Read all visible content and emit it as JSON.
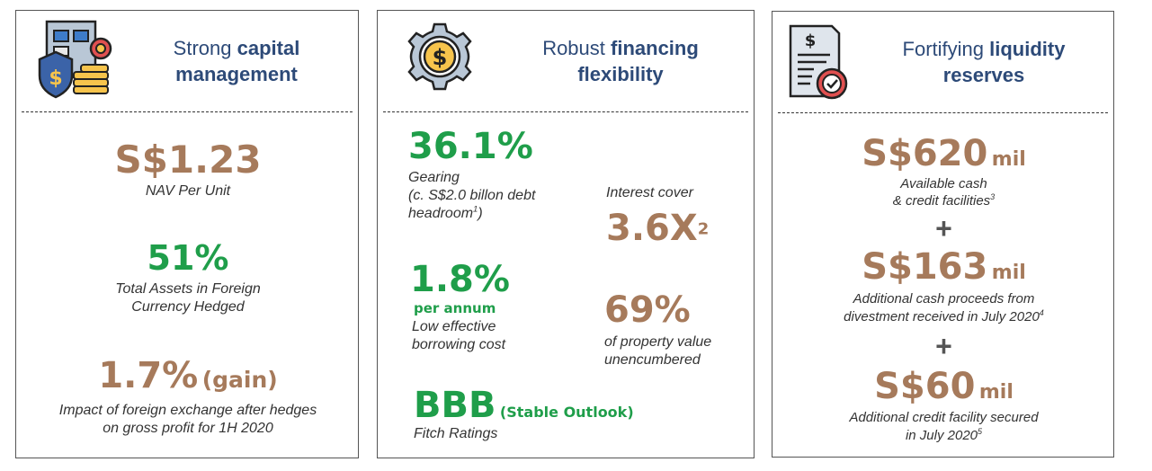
{
  "cards": {
    "capital": {
      "title_prefix": "Strong ",
      "title_bold_1": "capital",
      "title_bold_2": "management",
      "icon": "shield-coins-icon",
      "nav_value": "S$1.23",
      "nav_caption": "NAV Per Unit",
      "hedged_value": "51%",
      "hedged_caption_1": "Total Assets in Foreign",
      "hedged_caption_2": "Currency Hedged",
      "fx_value": "1.7%",
      "fx_suffix": "(gain)",
      "fx_caption_1": "Impact of foreign exchange after hedges",
      "fx_caption_2": "on gross profit for 1H 2020"
    },
    "financing": {
      "title_prefix": "Robust ",
      "title_bold_1": "financing",
      "title_bold_2": "flexibility",
      "icon": "gear-dollar-icon",
      "gearing_value": "36.1%",
      "gearing_caption_1": "Gearing",
      "gearing_caption_2": "(c. S$2.0 billon debt",
      "gearing_caption_3": "headroom",
      "gearing_caption_3_sup": "1",
      "gearing_caption_3_end": ")",
      "cover_caption": "Interest cover",
      "cover_value": "3.6X",
      "cover_sup": "2",
      "cost_value": "1.8%",
      "cost_unit": "per annum",
      "cost_caption_1": "Low effective",
      "cost_caption_2": "borrowing cost",
      "unenc_value": "69%",
      "unenc_caption_1": "of property value",
      "unenc_caption_2": "unencumbered",
      "rating_value": "BBB",
      "rating_outlook": "(Stable Outlook)",
      "rating_caption": "Fitch Ratings"
    },
    "liquidity": {
      "title_prefix": "Fortifying ",
      "title_bold_1": "liquidity",
      "title_bold_2": "reserves",
      "icon": "document-check-icon",
      "cash_value": "S$620",
      "cash_unit": "mil",
      "cash_caption_1": "Available cash",
      "cash_caption_2": "& credit facilities",
      "cash_sup": "3",
      "plus_1": "+",
      "divest_value": "S$163",
      "divest_unit": "mil",
      "divest_caption_1": "Additional cash proceeds from",
      "divest_caption_2": "divestment received in July 2020",
      "divest_sup": "4",
      "plus_2": "+",
      "credit_value": "S$60",
      "credit_unit": "mil",
      "credit_caption_1": "Additional credit facility secured",
      "credit_caption_2": "in July 2020",
      "credit_sup": "5"
    }
  },
  "colors": {
    "brown": "#a67a5b",
    "green": "#1f9e4a",
    "title_blue": "#2d4a78",
    "plus_gray": "#555555"
  }
}
